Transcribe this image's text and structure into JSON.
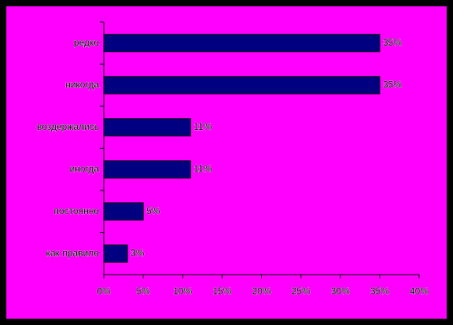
{
  "chart_data": {
    "type": "bar",
    "orientation": "horizontal",
    "categories": [
      "редко",
      "никогда",
      "воздержались",
      "иногда",
      "постоянно",
      "как правило"
    ],
    "values": [
      35,
      35,
      11,
      11,
      5,
      3
    ],
    "value_labels": [
      "35%",
      "35%",
      "11%",
      "11%",
      "5%",
      "3%"
    ],
    "color": "#000080",
    "xlim": [
      0,
      40
    ],
    "xticks": [
      {
        "value": 0,
        "label": "0%"
      },
      {
        "value": 5,
        "label": "5%"
      },
      {
        "value": 10,
        "label": "10%"
      },
      {
        "value": 15,
        "label": "15%"
      },
      {
        "value": 20,
        "label": "20%"
      },
      {
        "value": 25,
        "label": "25%"
      },
      {
        "value": 30,
        "label": "30%"
      },
      {
        "value": 35,
        "label": "35%"
      },
      {
        "value": 40,
        "label": "40%"
      }
    ]
  }
}
